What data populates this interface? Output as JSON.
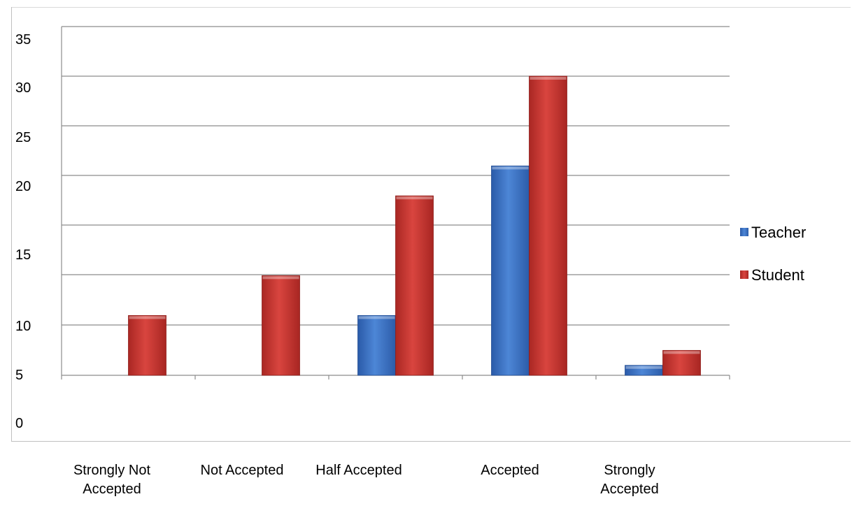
{
  "chart_data": {
    "type": "bar",
    "categories": [
      "Strongly Not Accepted",
      "Not Accepted",
      "Half Accepted",
      "Accepted",
      "Strongly Accepted"
    ],
    "series": [
      {
        "name": "Teacher",
        "values": [
          0,
          0,
          6,
          21,
          1
        ],
        "color": "#3a6fc4"
      },
      {
        "name": "Student",
        "values": [
          6,
          10,
          18,
          30,
          2.5
        ],
        "color": "#c0302d"
      }
    ],
    "yticks": [
      "0",
      "5",
      "10",
      "15",
      "20",
      "25",
      "30",
      "35"
    ],
    "ylim": [
      0,
      30
    ],
    "grid": true,
    "legend_position": "right",
    "title": "",
    "xlabel": "",
    "ylabel": ""
  }
}
